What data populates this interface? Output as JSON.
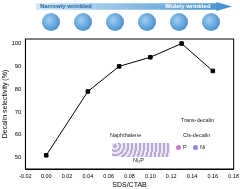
{
  "chart_data": {
    "type": "line",
    "x_label": "SDS/CTAB",
    "y_label": "Decalin selectivity (%)",
    "x": [
      0,
      0.04,
      0.07,
      0.1,
      0.13,
      0.16
    ],
    "values": [
      51,
      79,
      90,
      94,
      100,
      88
    ],
    "color": "#000000",
    "marker": "square",
    "xlim": [
      -0.02,
      0.18
    ],
    "xticks": [
      -0.02,
      {
        "value": 0,
        "label": "0.00"
      },
      0.02,
      0.04,
      0.06,
      0.08,
      {
        "value": 0.1,
        "label": "0.10"
      },
      0.12,
      0.14,
      0.16,
      0.18
    ],
    "ylim": [
      45,
      102
    ],
    "yticks": [
      50,
      60,
      70,
      80,
      90,
      100
    ],
    "grid": false,
    "annotations": [
      "Narrowly wrinkled",
      "Widely wrinkled",
      "Naphthalene",
      "Trans-decalin",
      "Cis-decalin",
      "Ni₂P",
      "P",
      "Ni"
    ]
  }
}
